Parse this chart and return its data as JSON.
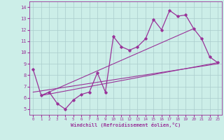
{
  "xlabel": "Windchill (Refroidissement éolien,°C)",
  "bg_color": "#cceee8",
  "grid_color": "#aacccc",
  "line_color": "#993399",
  "x_data": [
    0,
    1,
    2,
    3,
    4,
    5,
    6,
    7,
    8,
    9,
    10,
    11,
    12,
    13,
    14,
    15,
    16,
    17,
    18,
    19,
    20,
    21,
    22,
    23
  ],
  "y_actual": [
    8.5,
    6.2,
    6.5,
    5.5,
    5.0,
    5.8,
    6.3,
    6.5,
    8.2,
    6.5,
    11.4,
    10.5,
    10.2,
    10.5,
    11.2,
    12.9,
    12.0,
    13.7,
    13.2,
    13.3,
    12.1,
    11.2,
    9.6,
    9.1
  ],
  "trend1_x": [
    1,
    23
  ],
  "trend1_y": [
    6.2,
    9.1
  ],
  "trend2_x": [
    1,
    20
  ],
  "trend2_y": [
    6.2,
    12.1
  ],
  "trend3_x": [
    0,
    23
  ],
  "trend3_y": [
    6.5,
    9.0
  ],
  "xlim": [
    -0.5,
    23.5
  ],
  "ylim": [
    4.5,
    14.5
  ],
  "yticks": [
    5,
    6,
    7,
    8,
    9,
    10,
    11,
    12,
    13,
    14
  ],
  "xticks": [
    0,
    1,
    2,
    3,
    4,
    5,
    6,
    7,
    8,
    9,
    10,
    11,
    12,
    13,
    14,
    15,
    16,
    17,
    18,
    19,
    20,
    21,
    22,
    23
  ]
}
